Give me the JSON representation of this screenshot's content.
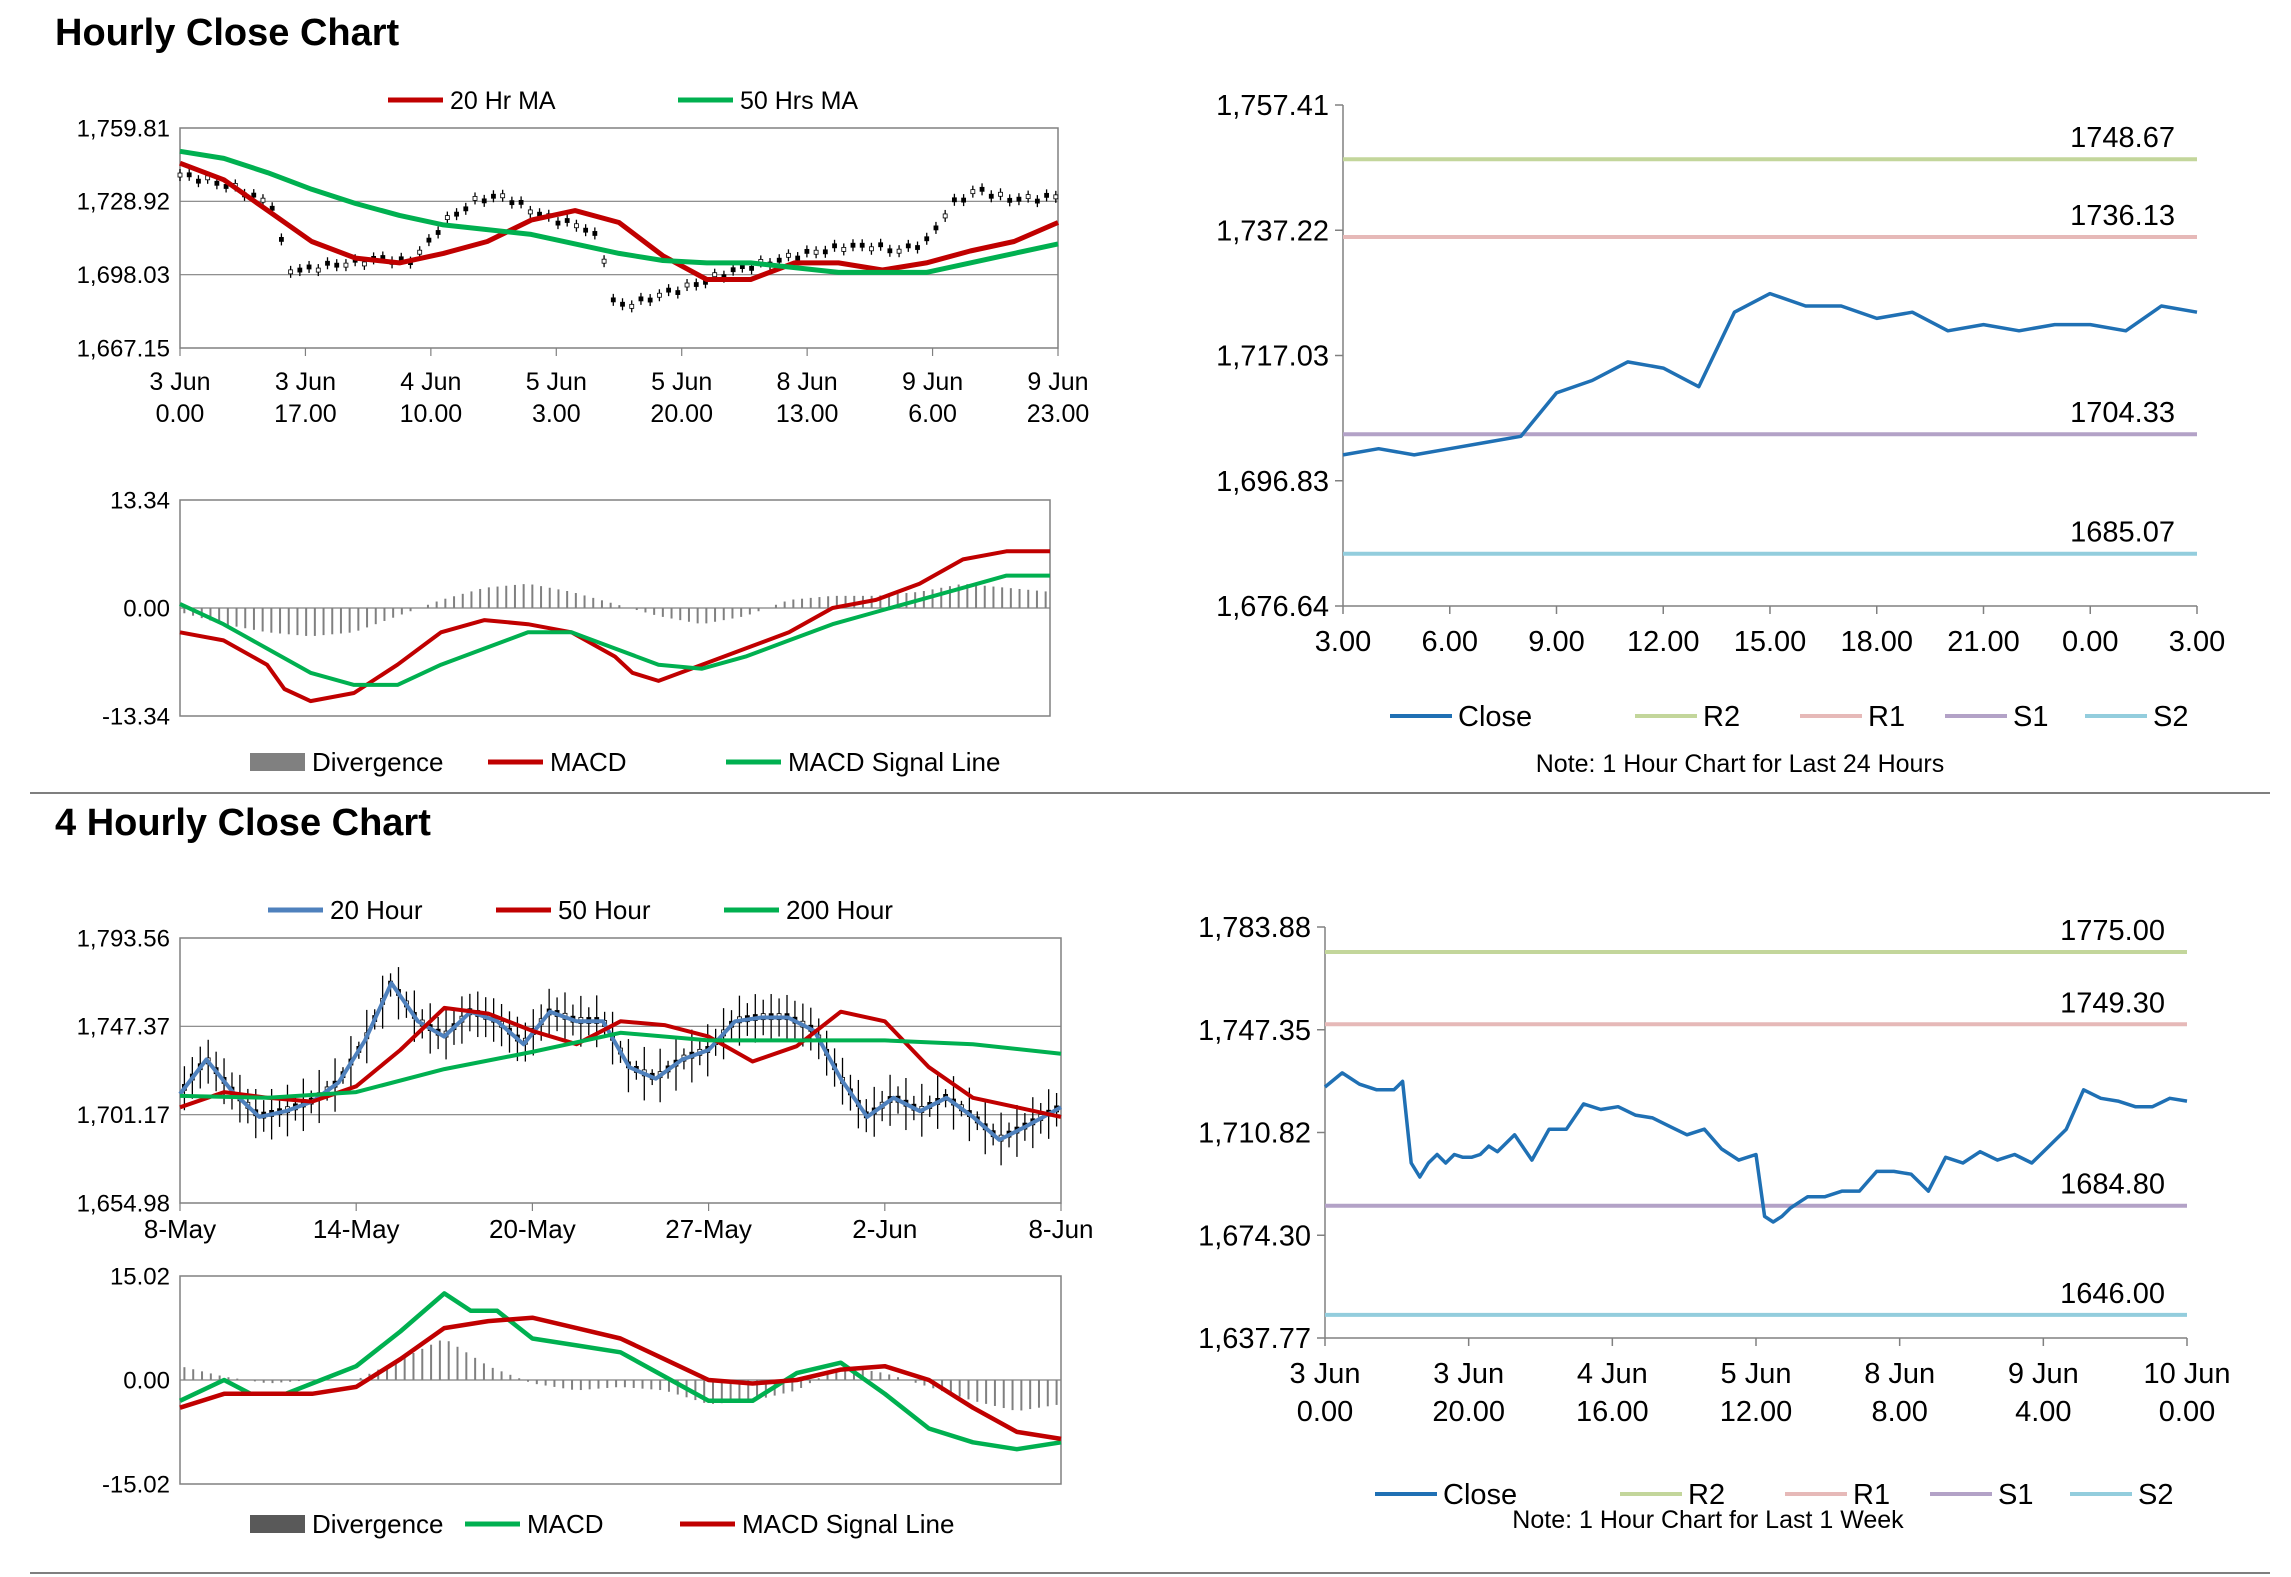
{
  "sections": {
    "hourly_title": "Hourly Close Chart",
    "four_hourly_title": "4 Hourly Close Chart"
  },
  "colors": {
    "red": "#C00000",
    "green": "#00B050",
    "blue": "#4F81BD",
    "close": "#1F70B4",
    "r2": "#C3D69B",
    "r1": "#E6B9B8",
    "s1": "#B3A2C7",
    "s2": "#93CDDD",
    "hist": "#808080",
    "gridline": "#808080"
  },
  "chart_data": [
    {
      "id": "hourly_price",
      "type": "line",
      "legend": [
        "20 Hr MA",
        "50 Hrs MA"
      ],
      "y_ticks": [
        "1,759.81",
        "1,728.92",
        "1,698.03",
        "1,667.15"
      ],
      "ylim": [
        1667.15,
        1759.81
      ],
      "x_ticks": [
        [
          "3 Jun",
          "0.00"
        ],
        [
          "3 Jun",
          "17.00"
        ],
        [
          "4 Jun",
          "10.00"
        ],
        [
          "5 Jun",
          "3.00"
        ],
        [
          "5 Jun",
          "20.00"
        ],
        [
          "8 Jun",
          "13.00"
        ],
        [
          "9 Jun",
          "6.00"
        ],
        [
          "9 Jun",
          "23.00"
        ]
      ],
      "series": [
        {
          "name": "20 Hr MA",
          "color": "red",
          "x": [
            0,
            5,
            10,
            15,
            20,
            25,
            30,
            35,
            40,
            45,
            50,
            55,
            60,
            65,
            70,
            75,
            80,
            85,
            90,
            95,
            100
          ],
          "values": [
            1745,
            1738,
            1725,
            1712,
            1705,
            1703,
            1707,
            1712,
            1721,
            1725,
            1720,
            1706,
            1696,
            1696,
            1703,
            1703,
            1700,
            1703,
            1708,
            1712,
            1720
          ]
        },
        {
          "name": "50 Hrs MA",
          "color": "green",
          "x": [
            0,
            5,
            10,
            15,
            20,
            25,
            30,
            35,
            40,
            45,
            50,
            55,
            60,
            65,
            70,
            75,
            80,
            85,
            90,
            95,
            100
          ],
          "values": [
            1750,
            1747,
            1741,
            1734,
            1728,
            1723,
            1719,
            1717,
            1715,
            1711,
            1707,
            1704,
            1703,
            1703,
            1701,
            1699,
            1699,
            1699,
            1703,
            1707,
            1711
          ]
        },
        {
          "name": "Price",
          "color": "black",
          "x": [
            0,
            3,
            6,
            9,
            11,
            12,
            14,
            17,
            20,
            23,
            26,
            28,
            30,
            32,
            34,
            37,
            40,
            42,
            44,
            46,
            48,
            49,
            50,
            52,
            55,
            58,
            61,
            64,
            67,
            70,
            73,
            76,
            79,
            82,
            85,
            88,
            91,
            94,
            97,
            100
          ],
          "values": [
            1740,
            1738,
            1735,
            1730,
            1726,
            1700,
            1700,
            1702,
            1703,
            1705,
            1703,
            1710,
            1720,
            1725,
            1730,
            1731,
            1725,
            1722,
            1720,
            1718,
            1712,
            1688,
            1685,
            1686,
            1690,
            1693,
            1697,
            1701,
            1703,
            1706,
            1708,
            1710,
            1710,
            1708,
            1712,
            1728,
            1734,
            1730,
            1730,
            1731
          ]
        }
      ]
    },
    {
      "id": "hourly_macd",
      "type": "line",
      "legend": [
        "Divergence",
        "MACD",
        "MACD Signal Line"
      ],
      "y_ticks": [
        "13.34",
        "0.00",
        "-13.34"
      ],
      "ylim": [
        -13.34,
        13.34
      ],
      "series": [
        {
          "name": "Divergence",
          "color": "hist",
          "x": [
            0,
            5,
            10,
            15,
            20,
            25,
            30,
            35,
            40,
            45,
            50,
            55,
            60,
            65,
            70,
            75,
            80,
            85,
            90,
            95,
            100
          ],
          "values": [
            -0.5,
            -2,
            -3,
            -3.5,
            -3,
            -1,
            1,
            2.5,
            3,
            2,
            0.5,
            -1,
            -2,
            -1,
            1,
            1.5,
            1.5,
            2,
            3,
            2.5,
            2
          ]
        },
        {
          "name": "MACD",
          "color": "red",
          "x": [
            0,
            5,
            10,
            12,
            15,
            20,
            25,
            30,
            35,
            40,
            45,
            50,
            52,
            55,
            60,
            65,
            70,
            75,
            80,
            85,
            90,
            95,
            100
          ],
          "values": [
            -3,
            -4,
            -7,
            -10,
            -11.5,
            -10.5,
            -7,
            -3,
            -1.5,
            -2,
            -3,
            -6,
            -8,
            -9,
            -7,
            -5,
            -3,
            0,
            1,
            3,
            6,
            7,
            7
          ]
        },
        {
          "name": "MACD Signal Line",
          "color": "green",
          "x": [
            0,
            5,
            10,
            15,
            20,
            25,
            30,
            35,
            40,
            45,
            50,
            55,
            60,
            65,
            70,
            75,
            80,
            85,
            90,
            95,
            100
          ],
          "values": [
            0.5,
            -2,
            -5,
            -8,
            -9.5,
            -9.5,
            -7,
            -5,
            -3,
            -3,
            -5,
            -7,
            -7.5,
            -6,
            -4,
            -2,
            -0.5,
            1,
            2.5,
            4,
            4
          ]
        }
      ]
    },
    {
      "id": "hourly_24h",
      "type": "line",
      "legend": [
        "Close",
        "R2",
        "R1",
        "S1",
        "S2"
      ],
      "note": "Note: 1 Hour Chart for Last 24 Hours",
      "y_ticks": [
        "1,757.41",
        "1,737.22",
        "1,717.03",
        "1,696.83",
        "1,676.64"
      ],
      "ylim": [
        1676.64,
        1757.41
      ],
      "x_ticks": [
        "3.00",
        "6.00",
        "9.00",
        "12.00",
        "15.00",
        "18.00",
        "21.00",
        "0.00",
        "3.00"
      ],
      "levels": [
        {
          "name": "R2",
          "value": 1748.67,
          "label": "1748.67",
          "color": "r2"
        },
        {
          "name": "R1",
          "value": 1736.13,
          "label": "1736.13",
          "color": "r1"
        },
        {
          "name": "S1",
          "value": 1704.33,
          "label": "1704.33",
          "color": "s1"
        },
        {
          "name": "S2",
          "value": 1685.07,
          "label": "1685.07",
          "color": "s2"
        }
      ],
      "series": [
        {
          "name": "Close",
          "color": "close",
          "x": [
            0,
            1,
            2,
            3,
            4,
            5,
            6,
            7,
            8,
            9,
            10,
            11,
            12,
            13,
            14,
            15,
            16,
            17,
            18,
            19,
            20,
            21,
            22,
            23,
            24
          ],
          "values": [
            1701,
            1702,
            1701,
            1702,
            1703,
            1704,
            1711,
            1713,
            1716,
            1715,
            1712,
            1724,
            1727,
            1725,
            1725,
            1723,
            1724,
            1721,
            1722,
            1721,
            1722,
            1722,
            1721,
            1725,
            1724
          ]
        }
      ]
    },
    {
      "id": "four_hourly_price",
      "type": "line",
      "legend": [
        "20 Hour",
        "50 Hour",
        "200 Hour"
      ],
      "y_ticks": [
        "1,793.56",
        "1,747.37",
        "1,701.17",
        "1,654.98"
      ],
      "ylim": [
        1654.98,
        1793.56
      ],
      "x_ticks": [
        "8-May",
        "14-May",
        "20-May",
        "27-May",
        "2-Jun",
        "8-Jun"
      ],
      "series": [
        {
          "name": "20 Hour",
          "color": "blue",
          "x": [
            0,
            3,
            6,
            9,
            12,
            15,
            18,
            21,
            24,
            27,
            30,
            33,
            36,
            39,
            42,
            45,
            48,
            51,
            54,
            57,
            60,
            63,
            66,
            69,
            72,
            75,
            78,
            81,
            84,
            87,
            90,
            93,
            96,
            100
          ],
          "values": [
            1712,
            1730,
            1713,
            1700,
            1703,
            1708,
            1718,
            1740,
            1770,
            1750,
            1742,
            1755,
            1750,
            1738,
            1755,
            1750,
            1750,
            1726,
            1720,
            1730,
            1735,
            1750,
            1752,
            1752,
            1745,
            1720,
            1700,
            1710,
            1703,
            1710,
            1700,
            1688,
            1695,
            1705
          ]
        },
        {
          "name": "50 Hour",
          "color": "red",
          "x": [
            0,
            5,
            10,
            15,
            20,
            25,
            30,
            35,
            40,
            45,
            50,
            55,
            60,
            65,
            70,
            75,
            80,
            85,
            90,
            95,
            100
          ],
          "values": [
            1705,
            1713,
            1710,
            1708,
            1716,
            1735,
            1757,
            1754,
            1745,
            1738,
            1750,
            1748,
            1742,
            1729,
            1737,
            1755,
            1750,
            1726,
            1710,
            1705,
            1700
          ]
        },
        {
          "name": "200 Hour",
          "color": "green",
          "x": [
            0,
            10,
            20,
            30,
            40,
            50,
            60,
            70,
            80,
            90,
            100
          ],
          "values": [
            1711,
            1710,
            1713,
            1725,
            1734,
            1744,
            1740,
            1740,
            1740,
            1738,
            1733
          ]
        }
      ]
    },
    {
      "id": "four_hourly_macd",
      "type": "line",
      "legend": [
        "Divergence",
        "MACD",
        "MACD Signal Line"
      ],
      "y_ticks": [
        "15.02",
        "0.00",
        "-15.02"
      ],
      "ylim": [
        -15.02,
        15.02
      ],
      "series": [
        {
          "name": "Divergence",
          "color": "hist",
          "x": [
            0,
            5,
            10,
            15,
            20,
            25,
            30,
            35,
            40,
            45,
            50,
            55,
            60,
            65,
            70,
            75,
            80,
            85,
            90,
            95,
            100
          ],
          "values": [
            2,
            0.5,
            -0.5,
            0,
            0,
            3,
            6,
            2,
            -0.5,
            -1.5,
            -1,
            -1.5,
            -3.5,
            -3,
            -1.5,
            2,
            1,
            -1,
            -3,
            -4.5,
            -3.5
          ]
        },
        {
          "name": "MACD",
          "color": "green",
          "x": [
            0,
            5,
            8,
            12,
            16,
            20,
            25,
            30,
            33,
            36,
            40,
            45,
            50,
            55,
            60,
            65,
            70,
            75,
            80,
            85,
            90,
            95,
            100
          ],
          "values": [
            -3,
            0,
            -2,
            -2,
            0,
            2,
            7,
            12.5,
            10,
            10,
            6,
            5,
            4,
            0.5,
            -3,
            -3,
            1,
            2.5,
            -2,
            -7,
            -9,
            -10,
            -9
          ]
        },
        {
          "name": "MACD Signal Line",
          "color": "red",
          "x": [
            0,
            5,
            10,
            15,
            20,
            25,
            30,
            35,
            40,
            45,
            50,
            55,
            60,
            65,
            70,
            75,
            80,
            85,
            90,
            95,
            100
          ],
          "values": [
            -4,
            -2,
            -2,
            -2,
            -1,
            3,
            7.5,
            8.5,
            9,
            7.5,
            6,
            3,
            0,
            -0.5,
            0,
            1.5,
            2,
            0,
            -4,
            -7.5,
            -8.5
          ]
        }
      ]
    },
    {
      "id": "four_hourly_week",
      "type": "line",
      "legend": [
        "Close",
        "R2",
        "R1",
        "S1",
        "S2"
      ],
      "note": "Note: 1 Hour Chart for Last 1 Week",
      "y_ticks": [
        "1,783.88",
        "1,747.35",
        "1,710.82",
        "1,674.30",
        "1,637.77"
      ],
      "ylim": [
        1637.77,
        1783.88
      ],
      "x_ticks": [
        [
          "3 Jun",
          "0.00"
        ],
        [
          "3 Jun",
          "20.00"
        ],
        [
          "4 Jun",
          "16.00"
        ],
        [
          "5 Jun",
          "12.00"
        ],
        [
          "8 Jun",
          "8.00"
        ],
        [
          "9 Jun",
          "4.00"
        ],
        [
          "10 Jun",
          "0.00"
        ]
      ],
      "levels": [
        {
          "name": "R2",
          "value": 1775.0,
          "label": "1775.00",
          "color": "r2"
        },
        {
          "name": "R1",
          "value": 1749.3,
          "label": "1749.30",
          "color": "r1"
        },
        {
          "name": "S1",
          "value": 1684.8,
          "label": "1684.80",
          "color": "s1"
        },
        {
          "name": "S2",
          "value": 1646.0,
          "label": "1646.00",
          "color": "s2"
        }
      ],
      "series": [
        {
          "name": "Close",
          "color": "close",
          "x": [
            0,
            2,
            4,
            6,
            8,
            9,
            10,
            11,
            12,
            13,
            14,
            15,
            16,
            17,
            18,
            19,
            20,
            22,
            24,
            26,
            28,
            30,
            32,
            34,
            36,
            38,
            40,
            42,
            44,
            46,
            48,
            50,
            51,
            52,
            53,
            54,
            55,
            56,
            58,
            60,
            62,
            64,
            66,
            68,
            70,
            72,
            74,
            76,
            78,
            80,
            82,
            84,
            86,
            88,
            90,
            92,
            94,
            96,
            98,
            100
          ],
          "values": [
            1727,
            1732,
            1728,
            1726,
            1726,
            1729,
            1700,
            1695,
            1700,
            1703,
            1700,
            1703,
            1702,
            1702,
            1703,
            1706,
            1704,
            1710,
            1701,
            1712,
            1712,
            1721,
            1719,
            1720,
            1717,
            1716,
            1713,
            1710,
            1712,
            1705,
            1701,
            1703,
            1681,
            1679,
            1681,
            1684,
            1686,
            1688,
            1688,
            1690,
            1690,
            1697,
            1697,
            1696,
            1690,
            1702,
            1700,
            1704,
            1701,
            1703,
            1700,
            1706,
            1712,
            1726,
            1723,
            1722,
            1720,
            1720,
            1723,
            1722
          ]
        }
      ]
    }
  ]
}
